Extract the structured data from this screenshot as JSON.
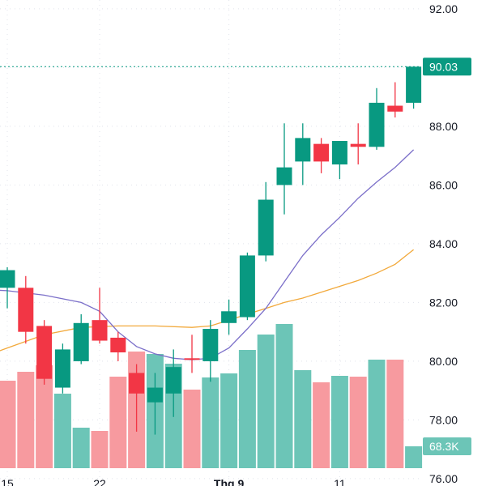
{
  "chart_data": {
    "type": "candlestick",
    "y_axis": {
      "range": [
        75.75,
        92.3
      ],
      "ticks": [
        "92.00",
        "90.00",
        "88.00",
        "86.00",
        "84.00",
        "82.00",
        "80.00",
        "78.00",
        "76.00"
      ],
      "position": "right"
    },
    "x_axis": {
      "labels": [
        {
          "text": "15",
          "index": 0
        },
        {
          "text": "22",
          "index": 5
        },
        {
          "text": "Thg 9",
          "index": 12,
          "bold": true
        },
        {
          "text": "11",
          "index": 18
        }
      ]
    },
    "last_price": {
      "value": 90.03,
      "label": "90.03"
    },
    "last_volume": {
      "label": "68.3K"
    },
    "candles": [
      {
        "o": 82.5,
        "h": 83.2,
        "l": 81.8,
        "c": 83.1
      },
      {
        "o": 82.5,
        "h": 82.9,
        "l": 80.6,
        "c": 81.0
      },
      {
        "o": 81.2,
        "h": 81.4,
        "l": 79.2,
        "c": 79.4
      },
      {
        "o": 79.1,
        "h": 80.6,
        "l": 78.9,
        "c": 80.4
      },
      {
        "o": 80.0,
        "h": 81.6,
        "l": 79.9,
        "c": 81.3
      },
      {
        "o": 81.4,
        "h": 82.5,
        "l": 80.6,
        "c": 80.7
      },
      {
        "o": 80.8,
        "h": 81.0,
        "l": 80.0,
        "c": 80.3
      },
      {
        "o": 79.6,
        "h": 79.9,
        "l": 77.6,
        "c": 78.9
      },
      {
        "o": 78.6,
        "h": 79.6,
        "l": 77.5,
        "c": 79.1
      },
      {
        "o": 78.9,
        "h": 80.4,
        "l": 78.1,
        "c": 79.8
      },
      {
        "o": 80.1,
        "h": 80.9,
        "l": 79.6,
        "c": 80.05
      },
      {
        "o": 80.0,
        "h": 81.4,
        "l": 79.3,
        "c": 81.1
      },
      {
        "o": 81.3,
        "h": 82.1,
        "l": 80.9,
        "c": 81.7
      },
      {
        "o": 81.5,
        "h": 83.7,
        "l": 81.4,
        "c": 83.6
      },
      {
        "o": 83.6,
        "h": 86.1,
        "l": 83.4,
        "c": 85.5
      },
      {
        "o": 86.0,
        "h": 88.1,
        "l": 85.0,
        "c": 86.6
      },
      {
        "o": 86.8,
        "h": 88.1,
        "l": 86.0,
        "c": 87.6
      },
      {
        "o": 87.4,
        "h": 87.6,
        "l": 86.4,
        "c": 86.8
      },
      {
        "o": 86.7,
        "h": 87.5,
        "l": 86.2,
        "c": 87.5
      },
      {
        "o": 87.4,
        "h": 88.1,
        "l": 86.7,
        "c": 87.3
      },
      {
        "o": 87.3,
        "h": 89.3,
        "l": 87.2,
        "c": 88.8
      },
      {
        "o": 88.7,
        "h": 89.5,
        "l": 88.3,
        "c": 88.5
      },
      {
        "o": 88.8,
        "h": 90.03,
        "l": 88.6,
        "c": 90.03
      }
    ],
    "volume": [
      {
        "v": 108,
        "up": false
      },
      {
        "v": 119,
        "up": false
      },
      {
        "v": 127,
        "up": false
      },
      {
        "v": 92,
        "up": true
      },
      {
        "v": 50,
        "up": true
      },
      {
        "v": 46,
        "up": false
      },
      {
        "v": 113,
        "up": false
      },
      {
        "v": 144,
        "up": false
      },
      {
        "v": 141,
        "up": true
      },
      {
        "v": 129,
        "up": true
      },
      {
        "v": 97,
        "up": false
      },
      {
        "v": 112,
        "up": true
      },
      {
        "v": 117,
        "up": true
      },
      {
        "v": 146,
        "up": true
      },
      {
        "v": 165,
        "up": true
      },
      {
        "v": 178,
        "up": true
      },
      {
        "v": 121,
        "up": true
      },
      {
        "v": 106,
        "up": false
      },
      {
        "v": 114,
        "up": true
      },
      {
        "v": 113,
        "up": false
      },
      {
        "v": 134,
        "up": true
      },
      {
        "v": 134,
        "up": false
      },
      {
        "v": 27,
        "up": true
      }
    ],
    "ma_fast": {
      "color": "#7b6fc9",
      "points": [
        [
          -1.5,
          82.45
        ],
        [
          0,
          82.4
        ],
        [
          2,
          82.25
        ],
        [
          4,
          82.0
        ],
        [
          5,
          81.7
        ],
        [
          6,
          81.0
        ],
        [
          7,
          80.5
        ],
        [
          8,
          80.25
        ],
        [
          9,
          80.1
        ],
        [
          10,
          80.05
        ],
        [
          11,
          80.1
        ],
        [
          12,
          80.45
        ],
        [
          13,
          81.1
        ],
        [
          14,
          81.8
        ],
        [
          15,
          82.7
        ],
        [
          16,
          83.6
        ],
        [
          17,
          84.3
        ],
        [
          18,
          84.9
        ],
        [
          19,
          85.55
        ],
        [
          20,
          86.1
        ],
        [
          21,
          86.6
        ],
        [
          22,
          87.2
        ]
      ]
    },
    "ma_slow": {
      "color": "#f2a93b",
      "points": [
        [
          -1.5,
          80.1
        ],
        [
          0,
          80.45
        ],
        [
          2,
          80.9
        ],
        [
          4,
          81.15
        ],
        [
          6,
          81.2
        ],
        [
          8,
          81.2
        ],
        [
          10,
          81.15
        ],
        [
          11,
          81.2
        ],
        [
          12,
          81.4
        ],
        [
          13,
          81.6
        ],
        [
          14,
          81.8
        ],
        [
          15,
          82.0
        ],
        [
          16,
          82.15
        ],
        [
          17,
          82.35
        ],
        [
          18,
          82.55
        ],
        [
          19,
          82.75
        ],
        [
          20,
          83.0
        ],
        [
          21,
          83.3
        ],
        [
          22,
          83.8
        ]
      ]
    },
    "colors": {
      "up": "#089981",
      "down": "#f23645",
      "up_volume": "#6cc5b7",
      "down_volume": "#f79a9f",
      "price_badge": "#089981",
      "grid": "#e0e3eb",
      "price_line": "#089981"
    }
  }
}
